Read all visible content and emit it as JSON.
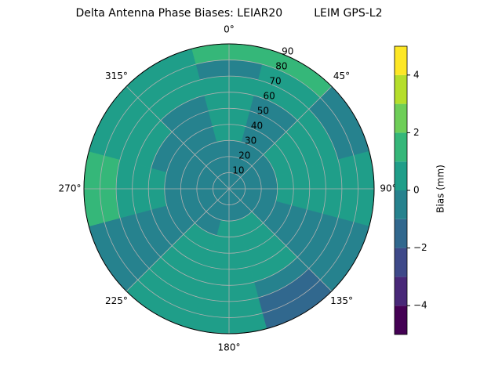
{
  "chart_data": {
    "type": "polar_contour",
    "title": "Delta Antenna Phase Biases: LEIAR20         LEIM GPS-L2",
    "colorbar_label": "Bias (mm)",
    "azimuths": [
      0,
      30,
      60,
      90,
      120,
      150,
      180,
      210,
      240,
      270,
      300,
      330
    ],
    "zenith_edges": [
      0,
      10,
      20,
      30,
      40,
      50,
      60,
      70,
      80,
      90
    ],
    "values": [
      [
        -0.5,
        -0.5,
        -0.5,
        -0.5,
        -0.5,
        -0.5,
        -0.5,
        -0.5,
        -0.5,
        -0.5,
        -0.5,
        -0.5
      ],
      [
        -0.5,
        -0.5,
        -0.5,
        -0.5,
        -0.5,
        -0.4,
        -0.4,
        -0.5,
        -0.5,
        -0.5,
        -0.5,
        -0.5
      ],
      [
        -0.3,
        -0.4,
        -0.4,
        -0.4,
        -0.5,
        0.3,
        0.3,
        -0.5,
        -0.5,
        -0.5,
        -0.5,
        -0.5
      ],
      [
        0.3,
        -0.4,
        0.3,
        0.3,
        -0.5,
        0.4,
        0.4,
        0.3,
        -0.5,
        -0.5,
        -0.5,
        -0.5
      ],
      [
        0.4,
        -0.4,
        0.4,
        0.4,
        -0.4,
        0.4,
        0.5,
        0.4,
        -0.5,
        0.3,
        -0.5,
        -0.5
      ],
      [
        0.4,
        -0.3,
        0.5,
        0.5,
        -0.4,
        0.5,
        0.5,
        0.5,
        -0.5,
        0.4,
        0.3,
        -0.5
      ],
      [
        0.4,
        0.3,
        0.5,
        0.5,
        -0.5,
        -0.6,
        0.5,
        0.5,
        -0.5,
        0.4,
        0.5,
        0.3
      ],
      [
        -0.4,
        0.5,
        -0.3,
        0.5,
        -0.6,
        -1.2,
        0.5,
        0.4,
        -0.5,
        1.2,
        0.6,
        0.4
      ],
      [
        1.3,
        1.2,
        -0.3,
        0.4,
        -0.8,
        -1.5,
        0.4,
        0.3,
        -0.6,
        1.5,
        0.5,
        0.4
      ]
    ],
    "levels": [
      -5,
      -4,
      -3,
      -2,
      -1,
      0,
      1,
      2,
      3,
      4,
      5
    ],
    "colors": [
      "#440154",
      "#482878",
      "#3e4989",
      "#31688e",
      "#26828e",
      "#1f9e89",
      "#35b779",
      "#6ece58",
      "#b5de2b",
      "#fde725"
    ],
    "rlim": [
      0,
      90
    ],
    "rticks": [
      10,
      20,
      30,
      40,
      50,
      60,
      70,
      80,
      90
    ],
    "thetaticks": [
      {
        "value": 0,
        "label": "0°"
      },
      {
        "value": 45,
        "label": "45°"
      },
      {
        "value": 90,
        "label": "90°"
      },
      {
        "value": 135,
        "label": "135°"
      },
      {
        "value": 180,
        "label": "180°"
      },
      {
        "value": 225,
        "label": "225°"
      },
      {
        "value": 270,
        "label": "270°"
      },
      {
        "value": 315,
        "label": "315°"
      }
    ],
    "clim": [
      -5,
      5
    ],
    "cticks": [
      {
        "value": -4,
        "label": "−4"
      },
      {
        "value": -2,
        "label": "−2"
      },
      0,
      2,
      4
    ],
    "grid": true
  }
}
